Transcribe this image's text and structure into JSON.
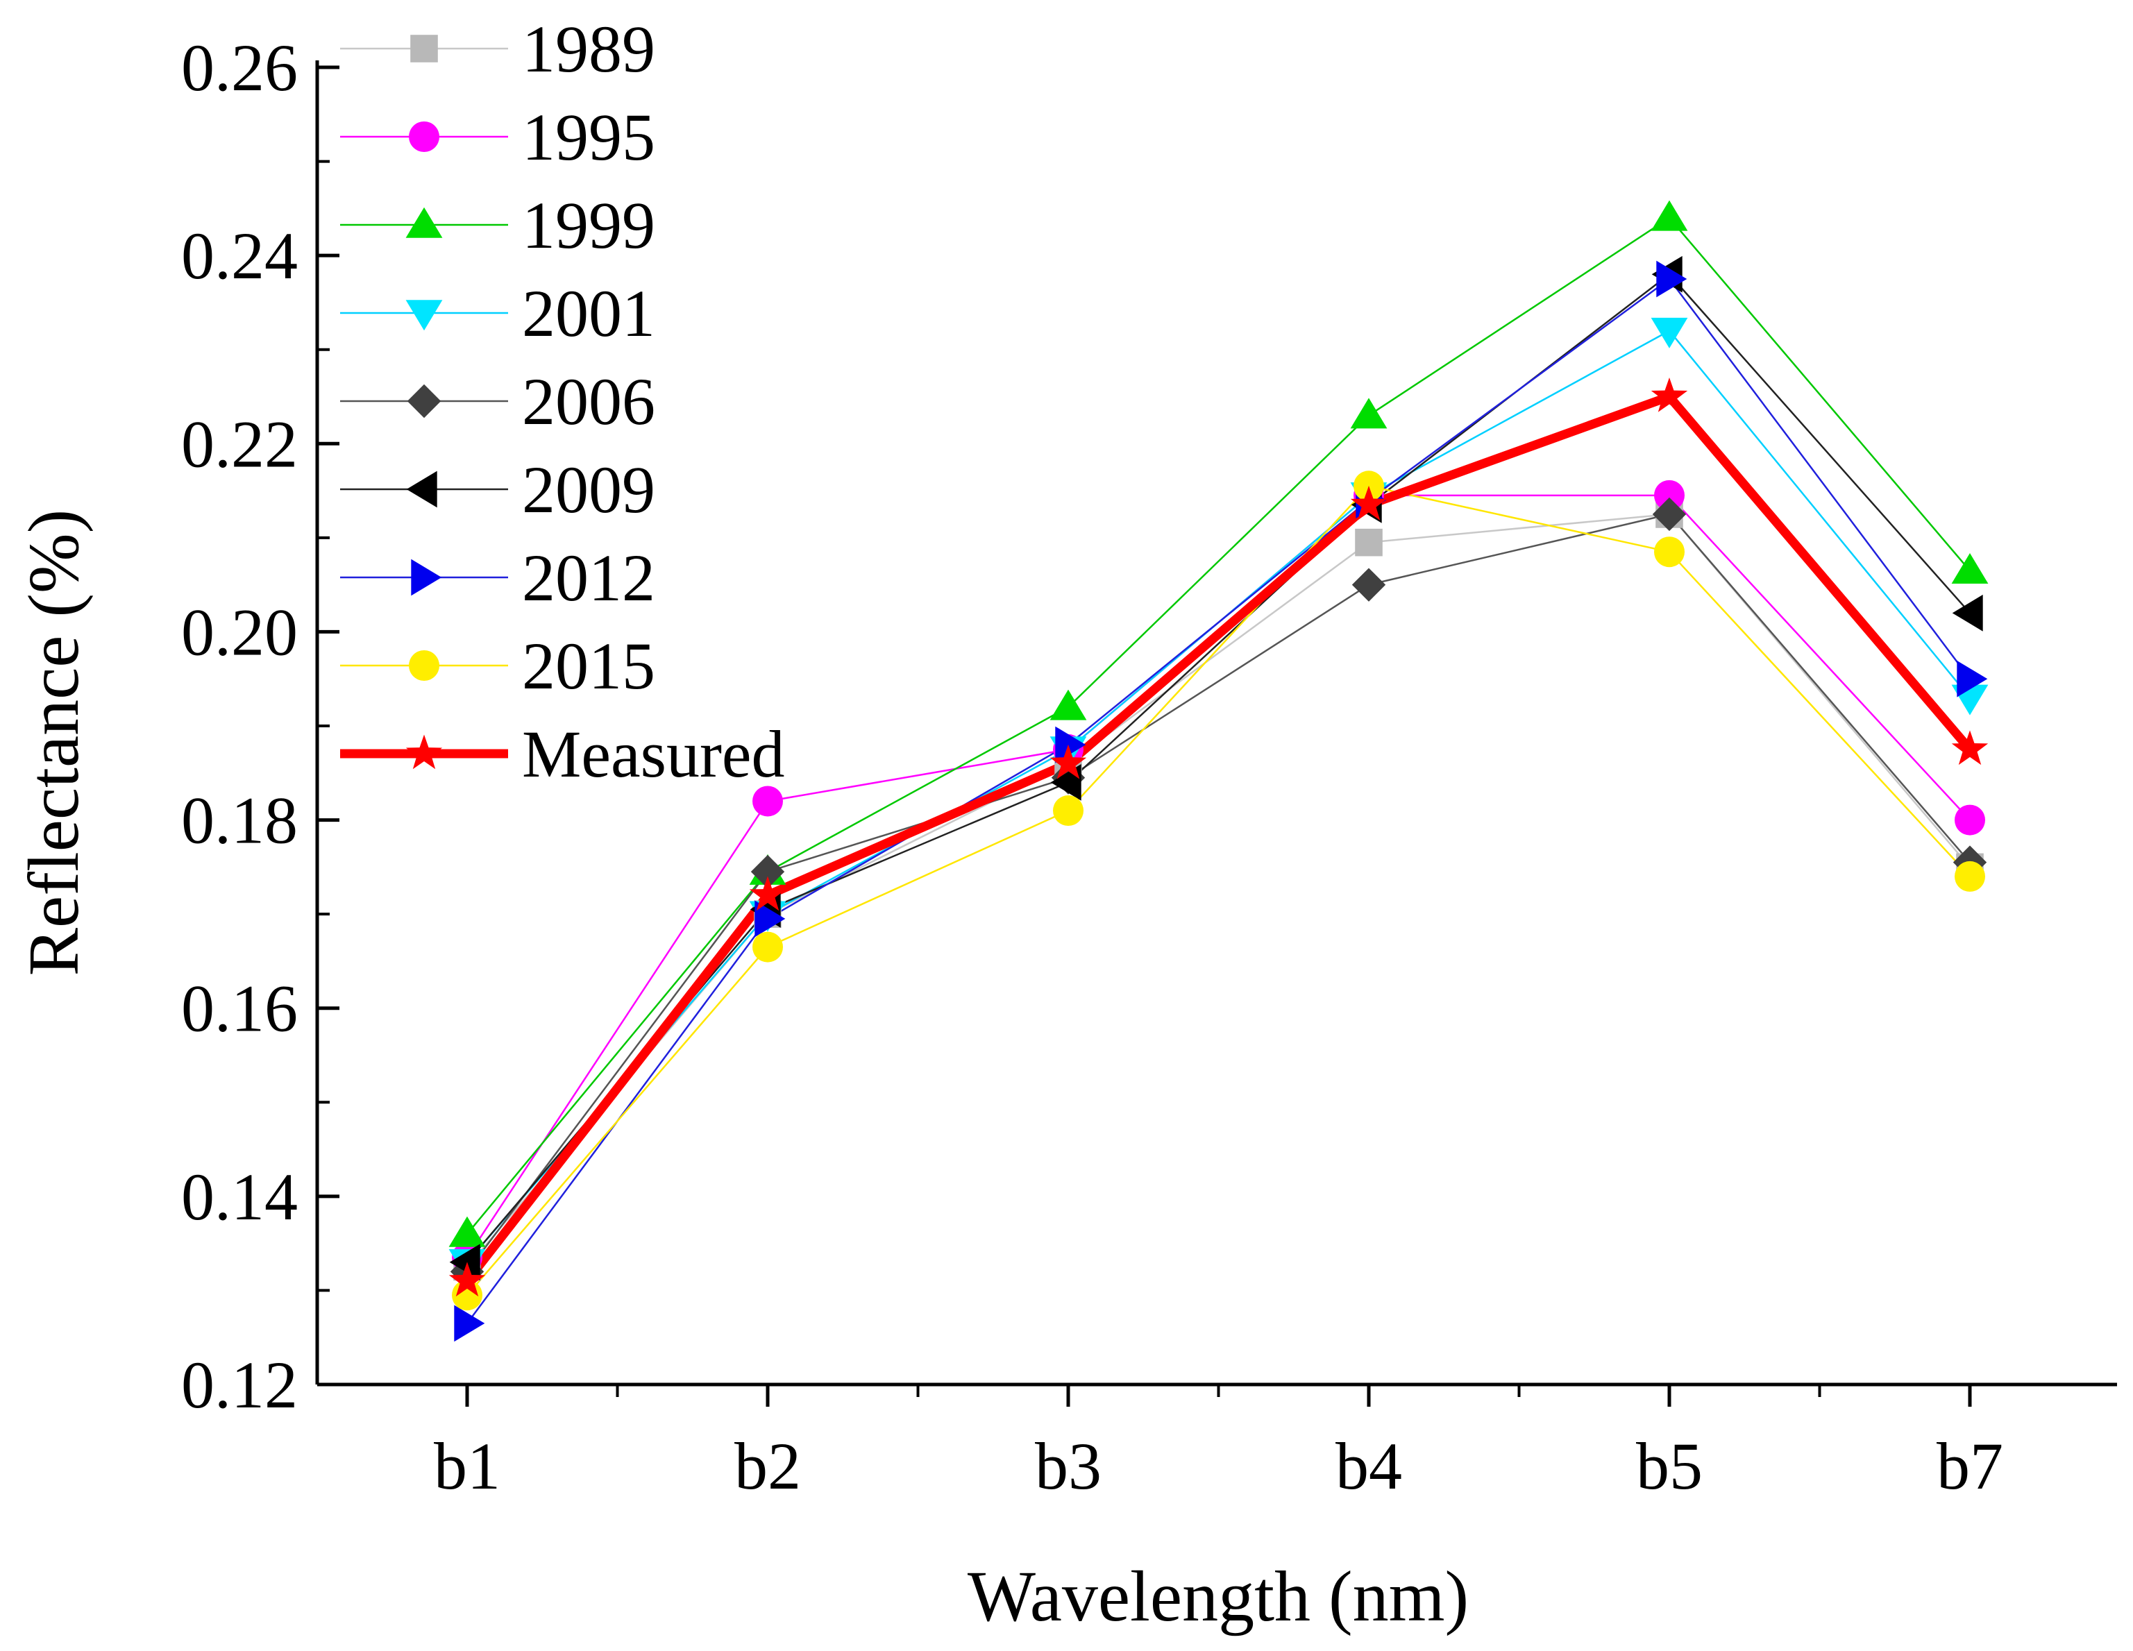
{
  "chart_data": {
    "type": "line",
    "title": "",
    "xlabel": "Wavelength (nm)",
    "ylabel": "Reflectance (%)",
    "categories": [
      "b1",
      "b2",
      "b3",
      "b4",
      "b5",
      "b7"
    ],
    "ylim": [
      0.12,
      0.26
    ],
    "yticks": [
      0.12,
      0.14,
      0.16,
      0.18,
      0.2,
      0.22,
      0.24,
      0.26
    ],
    "ytick_labels": [
      "0.12",
      "0.14",
      "0.16",
      "0.18",
      "0.20",
      "0.22",
      "0.24",
      "0.26"
    ],
    "legend_position": "top-left",
    "series": [
      {
        "name": "1989",
        "marker": "square",
        "color": "#b8b8b8",
        "line_color": "#c8c8c8",
        "values": [
          0.1325,
          0.17,
          0.186,
          0.2095,
          0.2125,
          0.175
        ]
      },
      {
        "name": "1995",
        "marker": "circle",
        "color": "#ff00ff",
        "line_color": "#ff00ff",
        "values": [
          0.1335,
          0.182,
          0.1875,
          0.2145,
          0.2145,
          0.18
        ]
      },
      {
        "name": "1999",
        "marker": "triangle-up",
        "color": "#00dd00",
        "line_color": "#00c800",
        "values": [
          0.136,
          0.1745,
          0.192,
          0.223,
          0.244,
          0.2065
        ]
      },
      {
        "name": "2001",
        "marker": "triangle-down",
        "color": "#00e5ff",
        "line_color": "#00d0ff",
        "values": [
          0.133,
          0.17,
          0.1875,
          0.2145,
          0.232,
          0.193
        ]
      },
      {
        "name": "2006",
        "marker": "diamond",
        "color": "#404040",
        "line_color": "#555555",
        "values": [
          0.132,
          0.1745,
          0.1845,
          0.205,
          0.2125,
          0.1755
        ]
      },
      {
        "name": "2009",
        "marker": "triangle-left",
        "color": "#000000",
        "line_color": "#222222",
        "values": [
          0.133,
          0.1705,
          0.184,
          0.2135,
          0.238,
          0.202
        ]
      },
      {
        "name": "2012",
        "marker": "triangle-right",
        "color": "#0000ee",
        "line_color": "#2020dd",
        "values": [
          0.1265,
          0.1695,
          0.188,
          0.214,
          0.2375,
          0.195
        ]
      },
      {
        "name": "2015",
        "marker": "circle",
        "color": "#ffee00",
        "line_color": "#ffe600",
        "values": [
          0.1295,
          0.1665,
          0.181,
          0.2155,
          0.2085,
          0.174
        ]
      },
      {
        "name": "Measured",
        "marker": "star",
        "color": "#ff0000",
        "line_color": "#ff0000",
        "bold": true,
        "values": [
          0.131,
          0.172,
          0.186,
          0.2135,
          0.225,
          0.1875
        ]
      }
    ]
  }
}
